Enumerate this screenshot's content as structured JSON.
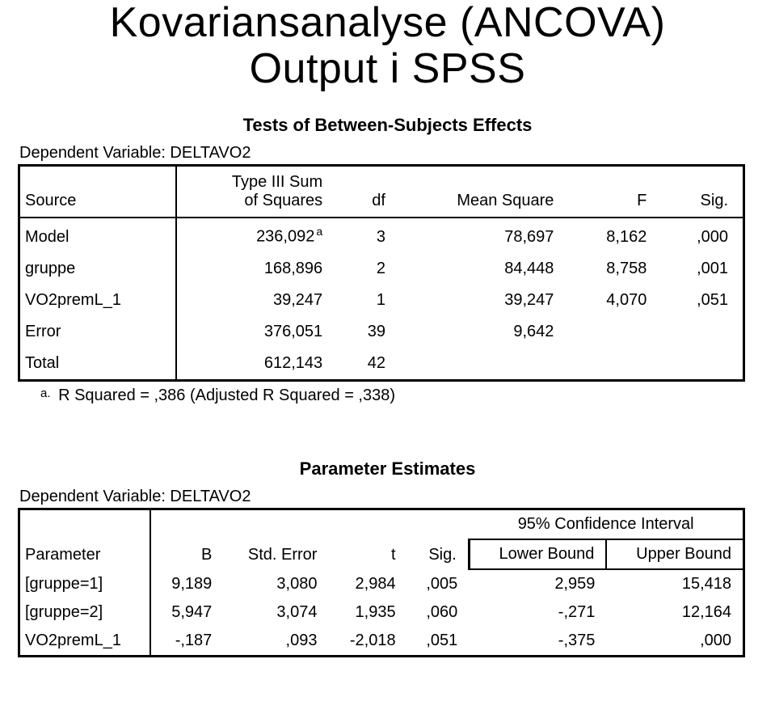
{
  "title_line1": "Kovariansanalyse (ANCOVA)",
  "title_line2": "Output i SPSS",
  "table1": {
    "section_title": "Tests of Between-Subjects Effects",
    "dep_label": "Dependent Variable: DELTAVO2",
    "head_source": "Source",
    "head_ss_l1": "Type III Sum",
    "head_ss_l2": "of Squares",
    "head_df": "df",
    "head_ms": "Mean Square",
    "head_f": "F",
    "head_sig": "Sig.",
    "rows": {
      "model": {
        "label": "Model",
        "ss": "236,092",
        "sup": "a",
        "df": "3",
        "ms": "78,697",
        "f": "8,162",
        "sig": ",000"
      },
      "gruppe": {
        "label": "gruppe",
        "ss": "168,896",
        "df": "2",
        "ms": "84,448",
        "f": "8,758",
        "sig": ",001"
      },
      "vo2": {
        "label": "VO2premL_1",
        "ss": "39,247",
        "df": "1",
        "ms": "39,247",
        "f": "4,070",
        "sig": ",051"
      },
      "error": {
        "label": "Error",
        "ss": "376,051",
        "df": "39",
        "ms": "9,642",
        "f": "",
        "sig": ""
      },
      "total": {
        "label": "Total",
        "ss": "612,143",
        "df": "42",
        "ms": "",
        "f": "",
        "sig": ""
      }
    },
    "footnote_a": "a.",
    "footnote_text": "R Squared = ,386 (Adjusted R Squared = ,338)"
  },
  "table2": {
    "section_title": "Parameter Estimates",
    "dep_label": "Dependent Variable: DELTAVO2",
    "head_param": "Parameter",
    "head_b": "B",
    "head_se": "Std. Error",
    "head_t": "t",
    "head_sig": "Sig.",
    "head_ci": "95% Confidence Interval",
    "head_lb": "Lower Bound",
    "head_ub": "Upper Bound",
    "rows": {
      "g1": {
        "label": "[gruppe=1]",
        "b": "9,189",
        "se": "3,080",
        "t": "2,984",
        "sig": ",005",
        "lb": "2,959",
        "ub": "15,418"
      },
      "g2": {
        "label": "[gruppe=2]",
        "b": "5,947",
        "se": "3,074",
        "t": "1,935",
        "sig": ",060",
        "lb": "-,271",
        "ub": "12,164"
      },
      "vo2": {
        "label": "VO2premL_1",
        "b": "-,187",
        "se": ",093",
        "t": "-2,018",
        "sig": ",051",
        "lb": "-,375",
        "ub": ",000"
      }
    }
  }
}
